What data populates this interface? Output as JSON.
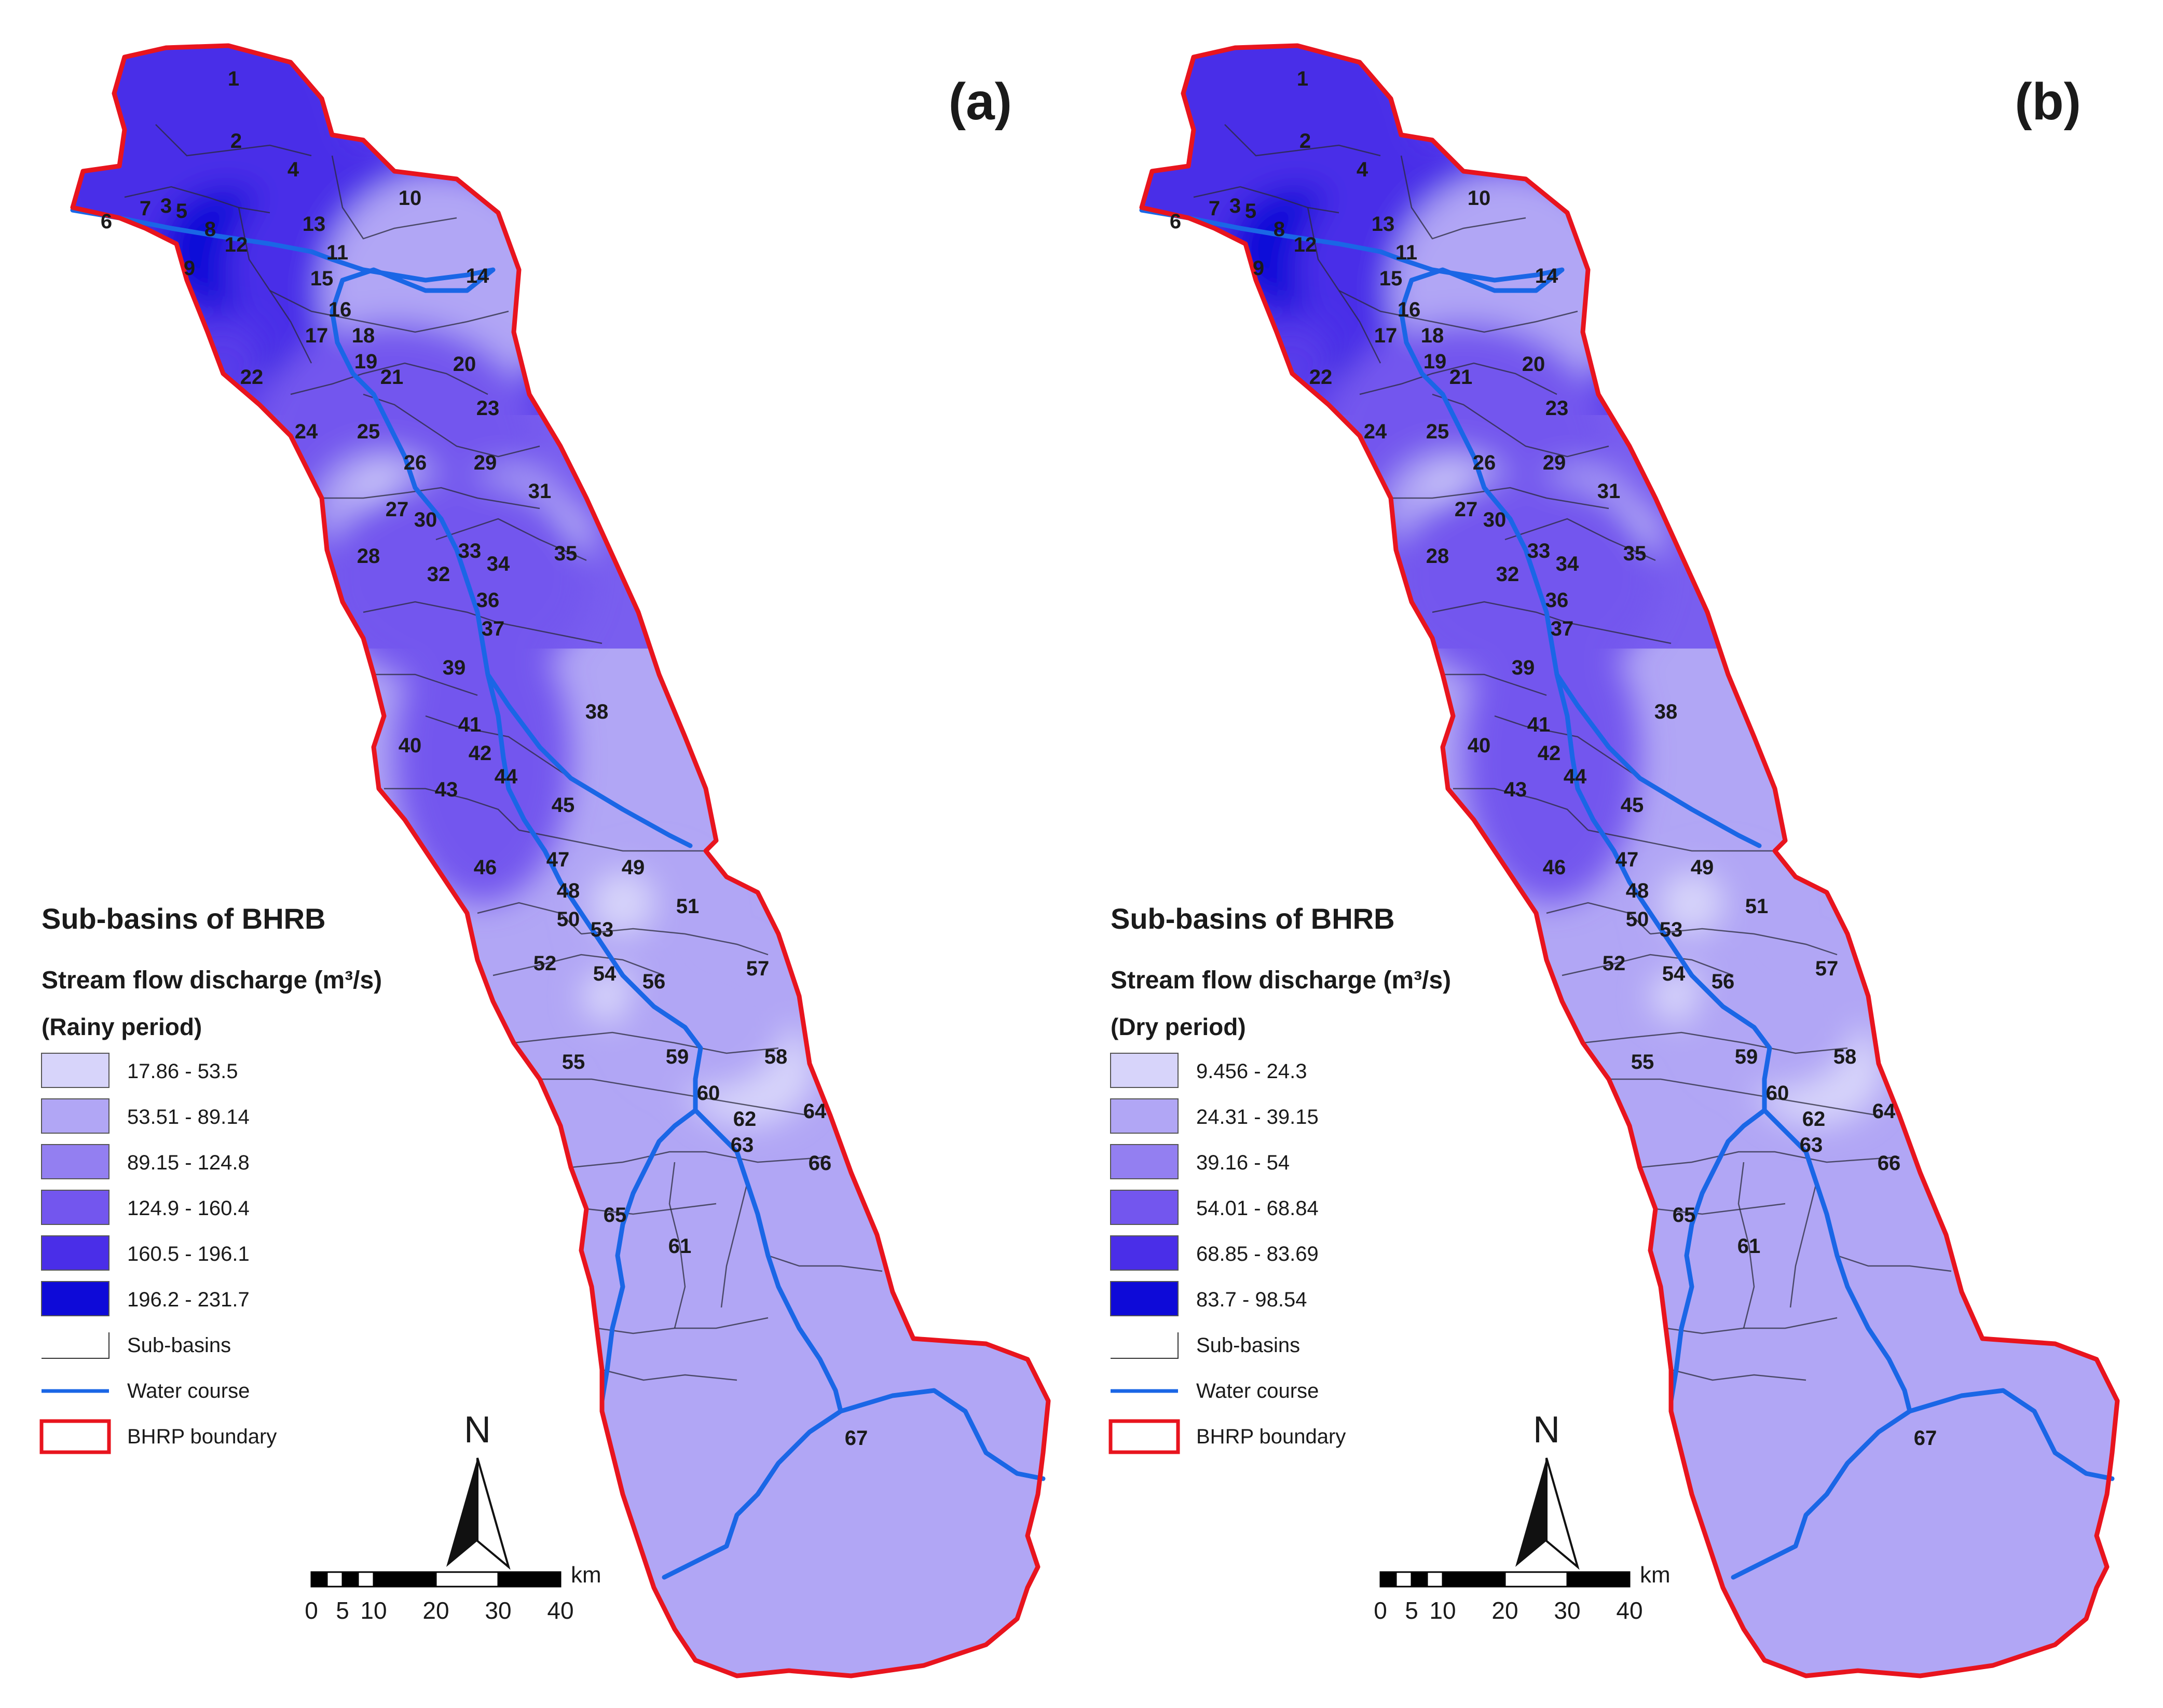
{
  "panels": [
    {
      "id": "a",
      "panel_label": "(a)",
      "legend": {
        "title": "Sub-basins of BHRB",
        "subtitle": "Stream flow discharge",
        "unit": "(m³/s)",
        "period": "(Rainy period)",
        "classes": [
          {
            "label": "17.86 - 53.5",
            "color": "#d7d4fa"
          },
          {
            "label": "53.51 - 89.14",
            "color": "#b1a6f5"
          },
          {
            "label": "89.15 - 124.8",
            "color": "#937ff1"
          },
          {
            "label": "124.9 - 160.4",
            "color": "#7356ee"
          },
          {
            "label": "160.5 - 196.1",
            "color": "#4a2ee8"
          },
          {
            "label": "196.2 - 231.7",
            "color": "#0e0ad8"
          }
        ],
        "subbasins_label": "Sub-basins",
        "watercourse_label": "Water course",
        "boundary_label": "BHRP boundary"
      },
      "scale_ticks": [
        "0",
        "5",
        "10",
        "20",
        "30",
        "40"
      ],
      "scale_unit": "km"
    },
    {
      "id": "b",
      "panel_label": "(b)",
      "legend": {
        "title": "Sub-basins of BHRB",
        "subtitle": "Stream flow discharge",
        "unit": "(m³/s)",
        "period": "(Dry period)",
        "classes": [
          {
            "label": "9.456 - 24.3",
            "color": "#d7d4fa"
          },
          {
            "label": "24.31 - 39.15",
            "color": "#b1a6f5"
          },
          {
            "label": "39.16 - 54",
            "color": "#937ff1"
          },
          {
            "label": "54.01 - 68.84",
            "color": "#7356ee"
          },
          {
            "label": "68.85 - 83.69",
            "color": "#4a2ee8"
          },
          {
            "label": "83.7 - 98.54",
            "color": "#0e0ad8"
          }
        ],
        "subbasins_label": "Sub-basins",
        "watercourse_label": "Water course",
        "boundary_label": "BHRP boundary"
      },
      "scale_ticks": [
        "0",
        "5",
        "10",
        "20",
        "30",
        "40"
      ],
      "scale_unit": "km"
    }
  ],
  "north_label": "N",
  "subbasin_numbers": [
    "1",
    "2",
    "3",
    "4",
    "5",
    "6",
    "7",
    "8",
    "9",
    "10",
    "11",
    "12",
    "13",
    "14",
    "15",
    "16",
    "17",
    "18",
    "19",
    "20",
    "21",
    "22",
    "23",
    "24",
    "25",
    "26",
    "27",
    "28",
    "29",
    "30",
    "31",
    "32",
    "33",
    "34",
    "35",
    "36",
    "37",
    "38",
    "39",
    "40",
    "41",
    "42",
    "43",
    "44",
    "45",
    "46",
    "47",
    "48",
    "49",
    "50",
    "51",
    "52",
    "53",
    "54",
    "55",
    "56",
    "57",
    "58",
    "59",
    "60",
    "61",
    "62",
    "63",
    "64",
    "65",
    "66",
    "67"
  ],
  "colors": {
    "boundary": "#e8141e",
    "water_course": "#1a66e6",
    "subbasin_line": "#333333"
  }
}
